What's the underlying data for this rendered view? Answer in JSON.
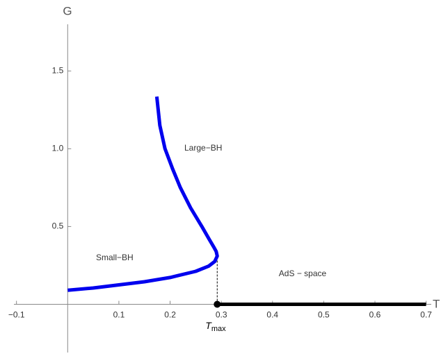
{
  "chart_data": {
    "type": "line",
    "xlabel": "T",
    "ylabel": "G",
    "xlim": [
      -0.105,
      0.71
    ],
    "ylim": [
      -0.31,
      1.8
    ],
    "xticks": [
      {
        "value": -0.1,
        "label": "−0.1"
      },
      0.1,
      0.2,
      0.3,
      0.4,
      0.5,
      0.6,
      0.7
    ],
    "yticks": [
      0.5,
      {
        "value": 1.0,
        "label": "1.0"
      },
      1.5
    ],
    "series": [
      {
        "color": "#0000ee",
        "x": [
          0,
          0.05,
          0.1,
          0.15,
          0.2,
          0.25,
          0.275,
          0.287,
          0.292,
          0.29,
          0.285,
          0.276,
          0.262,
          0.24,
          0.22,
          0.205,
          0.19,
          0.18,
          0.174
        ],
        "values": [
          0.09,
          0.105,
          0.125,
          0.145,
          0.172,
          0.212,
          0.245,
          0.275,
          0.31,
          0.34,
          0.37,
          0.42,
          0.5,
          0.62,
          0.75,
          0.87,
          1.0,
          1.15,
          1.335
        ]
      },
      {
        "color": "#000000",
        "x": [
          0.292,
          0.7
        ],
        "values": [
          0,
          0
        ]
      }
    ],
    "tmax": {
      "x": 0.292,
      "y": 0.31,
      "label_main": "T",
      "label_sub": "max"
    },
    "annotations": [
      "Large−BH",
      "Small−BH",
      "AdS − space"
    ]
  }
}
